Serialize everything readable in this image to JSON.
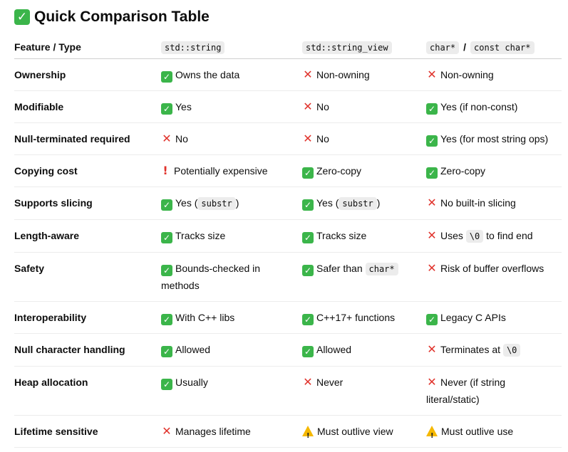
{
  "title": {
    "icon": "check-emoji",
    "text": "Quick Comparison Table"
  },
  "table": {
    "headers": {
      "feature": "Feature / Type",
      "string": "std::string",
      "string_view": "std::string_view",
      "char_ptr": "char*",
      "char_sep": "/",
      "const_char_ptr": "const char*"
    },
    "rows": [
      {
        "feature": "Ownership",
        "string": {
          "icon": "check",
          "text": "Owns the data"
        },
        "string_view": {
          "icon": "cross",
          "text": "Non-owning"
        },
        "char_ptr": {
          "icon": "cross",
          "text": "Non-owning"
        }
      },
      {
        "feature": "Modifiable",
        "string": {
          "icon": "check",
          "text": "Yes"
        },
        "string_view": {
          "icon": "cross",
          "text": "No"
        },
        "char_ptr": {
          "icon": "check",
          "text": "Yes (if non-const)"
        }
      },
      {
        "feature": "Null-terminated required",
        "string": {
          "icon": "cross",
          "text": "No"
        },
        "string_view": {
          "icon": "cross",
          "text": "No"
        },
        "char_ptr": {
          "icon": "check",
          "text": "Yes (for most string ops)"
        }
      },
      {
        "feature": "Copying cost",
        "string": {
          "icon": "exclamation",
          "text": "Potentially expensive"
        },
        "string_view": {
          "icon": "check",
          "text": "Zero-copy"
        },
        "char_ptr": {
          "icon": "check",
          "text": "Zero-copy"
        }
      },
      {
        "feature": "Supports slicing",
        "string": {
          "icon": "check",
          "pre": "Yes (",
          "code": "substr",
          "post": ")"
        },
        "string_view": {
          "icon": "check",
          "pre": "Yes (",
          "code": "substr",
          "post": ")"
        },
        "char_ptr": {
          "icon": "cross",
          "text": "No built-in slicing"
        }
      },
      {
        "feature": "Length-aware",
        "string": {
          "icon": "check",
          "text": "Tracks size"
        },
        "string_view": {
          "icon": "check",
          "text": "Tracks size"
        },
        "char_ptr": {
          "icon": "cross",
          "pre": "Uses ",
          "code": "\\0",
          "post": " to find end"
        }
      },
      {
        "feature": "Safety",
        "string": {
          "icon": "check",
          "text": "Bounds-checked in methods"
        },
        "string_view": {
          "icon": "check",
          "pre": "Safer than ",
          "code": "char*",
          "post": ""
        },
        "char_ptr": {
          "icon": "cross",
          "text": "Risk of buffer overflows"
        }
      },
      {
        "feature": "Interoperability",
        "string": {
          "icon": "check",
          "text": "With C++ libs"
        },
        "string_view": {
          "icon": "check",
          "text": "C++17+ functions"
        },
        "char_ptr": {
          "icon": "check",
          "text": "Legacy C APIs"
        }
      },
      {
        "feature": "Null character handling",
        "string": {
          "icon": "check",
          "text": "Allowed"
        },
        "string_view": {
          "icon": "check",
          "text": "Allowed"
        },
        "char_ptr": {
          "icon": "cross",
          "pre": "Terminates at ",
          "code": "\\0",
          "post": ""
        }
      },
      {
        "feature": "Heap allocation",
        "string": {
          "icon": "check",
          "text": "Usually"
        },
        "string_view": {
          "icon": "cross",
          "text": "Never"
        },
        "char_ptr": {
          "icon": "cross",
          "text": "Never (if string literal/static)"
        }
      },
      {
        "feature": "Lifetime sensitive",
        "string": {
          "icon": "cross",
          "text": "Manages lifetime"
        },
        "string_view": {
          "icon": "warning",
          "text": "Must outlive view"
        },
        "char_ptr": {
          "icon": "warning",
          "text": "Must outlive use"
        }
      }
    ]
  },
  "colors": {
    "check": "#3bb54a",
    "cross": "#e0322b",
    "warning": "#f5b800",
    "code_bg": "#ececec"
  }
}
